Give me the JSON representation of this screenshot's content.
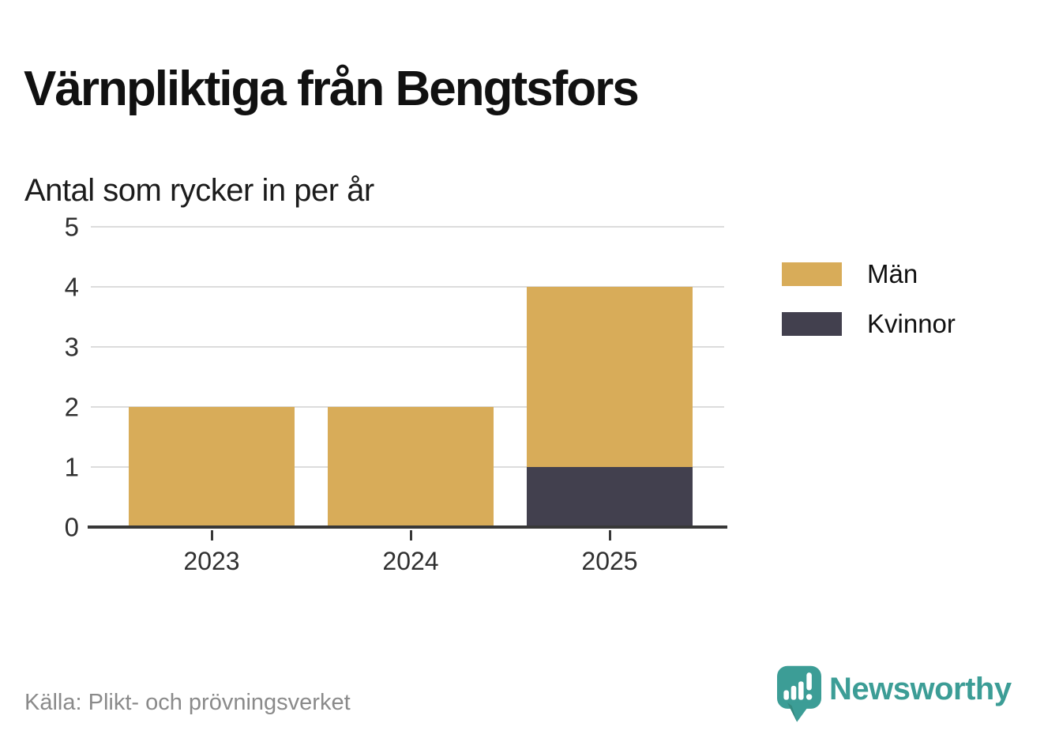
{
  "title": "Värnpliktiga från Bengtsfors",
  "subtitle": "Antal som rycker in per år",
  "source": "Källa: Plikt- och prövningsverket",
  "branding": {
    "logo_text": "Newsworthy",
    "logo_color": "#3C9D96",
    "logo_icon": "speech-bubble-bar-chart-icon"
  },
  "chart_data": {
    "type": "bar",
    "stacked": true,
    "title": "Värnpliktiga från Bengtsfors",
    "subtitle": "Antal som rycker in per år",
    "categories": [
      "2023",
      "2024",
      "2025"
    ],
    "series": [
      {
        "name": "Män",
        "color": "#D8AC59",
        "values": [
          2,
          2,
          3
        ]
      },
      {
        "name": "Kvinnor",
        "color": "#42404E",
        "values": [
          0,
          0,
          1
        ]
      }
    ],
    "totals": [
      2,
      2,
      4
    ],
    "stack_order_bottom_up": [
      "Kvinnor",
      "Män"
    ],
    "xlabel": "",
    "ylabel": "",
    "ylim": [
      0,
      5
    ],
    "yticks": [
      0,
      1,
      2,
      3,
      4,
      5
    ],
    "grid": "horizontal",
    "legend_position": "right",
    "colors": {
      "grid": "#DCDCDC",
      "axis": "#383838",
      "tick_label": "#303030"
    }
  }
}
